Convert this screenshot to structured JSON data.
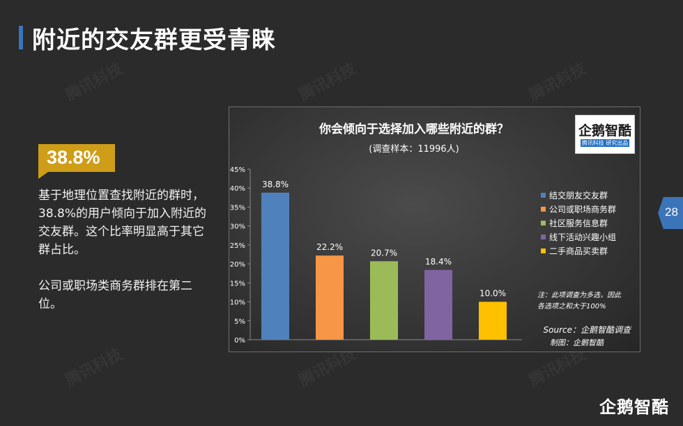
{
  "page": {
    "title": "附近的交友群更受青睐",
    "page_number": "28",
    "brand": "企鹅智酷",
    "watermark": "腾讯科技"
  },
  "sidebar": {
    "highlight": "38.8%",
    "paragraphs": [
      "基于地理位置查找附近的群时，38.8%的用户倾向于加入附近的交友群。这个比率明显高于其它群占比。",
      "公司或职场类商务群排在第二位。"
    ]
  },
  "logo": {
    "name": "企鹅智酷",
    "sub": "腾讯科技 研究出品"
  },
  "chart_data": {
    "type": "bar",
    "title": "你会倾向于选择加入哪些附近的群？",
    "subtitle": "(调查样本：11996人)",
    "categories": [
      "结交朋友交友群",
      "公司或职场商务群",
      "社区服务信息群",
      "线下活动兴趣小组",
      "二手商品买卖群"
    ],
    "values": [
      38.8,
      22.2,
      20.7,
      18.4,
      10.0
    ],
    "value_labels": [
      "38.8%",
      "22.2%",
      "20.7%",
      "18.4%",
      "10.0%"
    ],
    "colors": [
      "#4f81bd",
      "#f79646",
      "#9bbb59",
      "#8064a2",
      "#ffc000"
    ],
    "ylim": [
      0,
      45
    ],
    "yticks": [
      "0%",
      "5%",
      "10%",
      "15%",
      "20%",
      "25%",
      "30%",
      "35%",
      "40%",
      "45%"
    ],
    "legend_position": "right",
    "note": [
      "注：此项调查为多选，因此",
      "各选项之和大于100%"
    ],
    "source": [
      "Source：企鹅智酷调查",
      "制图：企鹅智酷"
    ]
  },
  "colors": {
    "accent": "#3c74b9",
    "highlight": "#cf9d17",
    "background": "#2b2b2b"
  }
}
